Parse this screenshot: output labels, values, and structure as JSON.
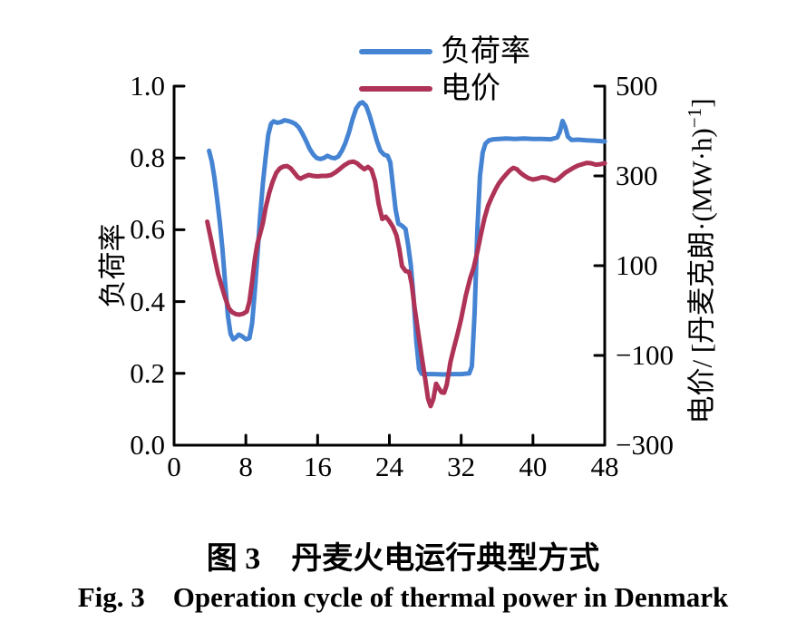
{
  "figure": {
    "caption_zh": "图 3　丹麦火电运行典型方式",
    "caption_en": "Fig. 3　Operation cycle of thermal power in Denmark"
  },
  "legend": {
    "items": [
      {
        "label": "负荷率",
        "color": "#4583d3"
      },
      {
        "label": "电价",
        "color": "#ae3357"
      }
    ]
  },
  "axes": {
    "x": {
      "min": 0,
      "max": 48,
      "ticks": [
        {
          "value": 0,
          "label": "0"
        },
        {
          "value": 8,
          "label": "8"
        },
        {
          "value": 16,
          "label": "16"
        },
        {
          "value": 24,
          "label": "24"
        },
        {
          "value": 32,
          "label": "32"
        },
        {
          "value": 40,
          "label": "40"
        },
        {
          "value": 48,
          "label": "48"
        }
      ]
    },
    "y_left": {
      "min": 0,
      "max": 1,
      "title": "负荷率",
      "ticks": [
        {
          "value": 0.0,
          "label": "0.0"
        },
        {
          "value": 0.2,
          "label": "0.2"
        },
        {
          "value": 0.4,
          "label": "0.4"
        },
        {
          "value": 0.6,
          "label": "0.6"
        },
        {
          "value": 0.8,
          "label": "0.8"
        },
        {
          "value": 1.0,
          "label": "1.0"
        }
      ]
    },
    "y_right": {
      "min": -300,
      "max": 500,
      "title_main": "电价/ [丹麦克朗·(MW·h)",
      "title_sup": "−1",
      "title_close": "]",
      "ticks": [
        {
          "value": 500,
          "label": "500"
        },
        {
          "value": 300,
          "label": "300"
        },
        {
          "value": 100,
          "label": "100"
        },
        {
          "value": -100,
          "label": "−100"
        },
        {
          "value": -300,
          "label": "−300"
        }
      ]
    }
  },
  "chart_data": {
    "type": "line",
    "title": "丹麦火电运行典型方式 (Operation cycle of thermal power in Denmark)",
    "xlabel": "",
    "x_range": [
      0,
      48
    ],
    "left_axis": {
      "label": "负荷率",
      "range": [
        0.0,
        1.0
      ]
    },
    "right_axis": {
      "label": "电价/[丹麦克朗·(MW·h)⁻¹]",
      "range": [
        -300,
        500
      ]
    },
    "grid": false,
    "legend_position": "top-center",
    "series": [
      {
        "name": "负荷率",
        "axis": "left",
        "color": "#4583d3",
        "points": [
          [
            3.9,
            0.82
          ],
          [
            4.2,
            0.79
          ],
          [
            4.5,
            0.745
          ],
          [
            4.8,
            0.685
          ],
          [
            5.1,
            0.62
          ],
          [
            5.4,
            0.545
          ],
          [
            5.7,
            0.45
          ],
          [
            6.0,
            0.36
          ],
          [
            6.3,
            0.31
          ],
          [
            6.6,
            0.295
          ],
          [
            6.9,
            0.3
          ],
          [
            7.2,
            0.308
          ],
          [
            7.6,
            0.303
          ],
          [
            8.0,
            0.295
          ],
          [
            8.4,
            0.298
          ],
          [
            8.7,
            0.34
          ],
          [
            9.0,
            0.43
          ],
          [
            9.3,
            0.53
          ],
          [
            9.6,
            0.64
          ],
          [
            9.9,
            0.73
          ],
          [
            10.2,
            0.8
          ],
          [
            10.5,
            0.865
          ],
          [
            10.8,
            0.895
          ],
          [
            11.1,
            0.902
          ],
          [
            11.5,
            0.898
          ],
          [
            11.9,
            0.9
          ],
          [
            12.3,
            0.905
          ],
          [
            12.7,
            0.903
          ],
          [
            13.1,
            0.9
          ],
          [
            13.5,
            0.895
          ],
          [
            13.9,
            0.885
          ],
          [
            14.3,
            0.868
          ],
          [
            14.7,
            0.848
          ],
          [
            15.1,
            0.826
          ],
          [
            15.5,
            0.81
          ],
          [
            15.9,
            0.8
          ],
          [
            16.3,
            0.797
          ],
          [
            16.7,
            0.8
          ],
          [
            17.1,
            0.806
          ],
          [
            17.5,
            0.801
          ],
          [
            17.9,
            0.799
          ],
          [
            18.3,
            0.804
          ],
          [
            18.7,
            0.82
          ],
          [
            19.1,
            0.842
          ],
          [
            19.5,
            0.872
          ],
          [
            19.9,
            0.908
          ],
          [
            20.3,
            0.938
          ],
          [
            20.7,
            0.952
          ],
          [
            21.0,
            0.955
          ],
          [
            21.4,
            0.945
          ],
          [
            21.8,
            0.918
          ],
          [
            22.2,
            0.883
          ],
          [
            22.6,
            0.848
          ],
          [
            23.0,
            0.82
          ],
          [
            23.4,
            0.809
          ],
          [
            23.8,
            0.806
          ],
          [
            24.1,
            0.788
          ],
          [
            24.4,
            0.72
          ],
          [
            24.7,
            0.655
          ],
          [
            25.0,
            0.617
          ],
          [
            25.4,
            0.611
          ],
          [
            25.8,
            0.602
          ],
          [
            26.1,
            0.555
          ],
          [
            26.4,
            0.5
          ],
          [
            26.7,
            0.41
          ],
          [
            27.0,
            0.29
          ],
          [
            27.3,
            0.213
          ],
          [
            27.6,
            0.199
          ],
          [
            28.2,
            0.198
          ],
          [
            29.0,
            0.198
          ],
          [
            30.0,
            0.197
          ],
          [
            31.0,
            0.198
          ],
          [
            32.0,
            0.198
          ],
          [
            32.9,
            0.2
          ],
          [
            33.2,
            0.22
          ],
          [
            33.5,
            0.37
          ],
          [
            33.8,
            0.6
          ],
          [
            34.1,
            0.75
          ],
          [
            34.4,
            0.815
          ],
          [
            34.7,
            0.84
          ],
          [
            35.1,
            0.849
          ],
          [
            35.6,
            0.852
          ],
          [
            36.2,
            0.853
          ],
          [
            37.0,
            0.854
          ],
          [
            38.0,
            0.853
          ],
          [
            39.0,
            0.854
          ],
          [
            40.0,
            0.853
          ],
          [
            41.0,
            0.853
          ],
          [
            42.0,
            0.852
          ],
          [
            42.7,
            0.857
          ],
          [
            43.0,
            0.873
          ],
          [
            43.3,
            0.903
          ],
          [
            43.6,
            0.886
          ],
          [
            43.9,
            0.859
          ],
          [
            44.3,
            0.85
          ],
          [
            45.0,
            0.851
          ],
          [
            46.0,
            0.849
          ],
          [
            47.0,
            0.848
          ],
          [
            48.0,
            0.846
          ]
        ]
      },
      {
        "name": "电价",
        "axis": "right",
        "color": "#ae3357",
        "points": [
          [
            3.7,
            198
          ],
          [
            4.1,
            160
          ],
          [
            4.5,
            120
          ],
          [
            4.9,
            82
          ],
          [
            5.3,
            55
          ],
          [
            5.7,
            28
          ],
          [
            6.1,
            5
          ],
          [
            6.5,
            -4
          ],
          [
            6.9,
            -8
          ],
          [
            7.3,
            -9
          ],
          [
            7.7,
            -7
          ],
          [
            8.1,
            -2
          ],
          [
            8.4,
            20
          ],
          [
            8.7,
            65
          ],
          [
            9.0,
            115
          ],
          [
            9.3,
            150
          ],
          [
            9.6,
            172
          ],
          [
            9.9,
            195
          ],
          [
            10.2,
            228
          ],
          [
            10.6,
            262
          ],
          [
            11.0,
            288
          ],
          [
            11.4,
            307
          ],
          [
            11.8,
            317
          ],
          [
            12.2,
            321
          ],
          [
            12.6,
            322
          ],
          [
            13.0,
            317
          ],
          [
            13.4,
            307
          ],
          [
            13.8,
            297
          ],
          [
            14.1,
            294
          ],
          [
            14.5,
            298
          ],
          [
            15.0,
            302
          ],
          [
            15.5,
            300
          ],
          [
            16.0,
            299
          ],
          [
            16.5,
            300
          ],
          [
            17.0,
            300
          ],
          [
            17.5,
            302
          ],
          [
            18.0,
            308
          ],
          [
            18.5,
            316
          ],
          [
            19.0,
            324
          ],
          [
            19.5,
            330
          ],
          [
            20.0,
            332
          ],
          [
            20.4,
            328
          ],
          [
            20.8,
            321
          ],
          [
            21.2,
            315
          ],
          [
            21.6,
            320
          ],
          [
            22.0,
            314
          ],
          [
            22.4,
            288
          ],
          [
            22.8,
            238
          ],
          [
            23.2,
            204
          ],
          [
            23.6,
            209
          ],
          [
            24.0,
            199
          ],
          [
            24.4,
            186
          ],
          [
            24.8,
            167
          ],
          [
            25.1,
            138
          ],
          [
            25.4,
            99
          ],
          [
            25.8,
            88
          ],
          [
            26.2,
            86
          ],
          [
            26.5,
            58
          ],
          [
            26.8,
            8
          ],
          [
            27.2,
            -48
          ],
          [
            27.6,
            -102
          ],
          [
            28.0,
            -154
          ],
          [
            28.3,
            -196
          ],
          [
            28.6,
            -213
          ],
          [
            28.9,
            -197
          ],
          [
            29.2,
            -163
          ],
          [
            29.5,
            -173
          ],
          [
            29.8,
            -182
          ],
          [
            30.1,
            -183
          ],
          [
            30.4,
            -165
          ],
          [
            30.8,
            -115
          ],
          [
            31.2,
            -82
          ],
          [
            31.6,
            -52
          ],
          [
            32.0,
            -18
          ],
          [
            32.5,
            32
          ],
          [
            33.0,
            72
          ],
          [
            33.4,
            96
          ],
          [
            33.8,
            131
          ],
          [
            34.2,
            169
          ],
          [
            34.6,
            206
          ],
          [
            35.0,
            234
          ],
          [
            35.4,
            252
          ],
          [
            35.8,
            269
          ],
          [
            36.2,
            283
          ],
          [
            36.6,
            294
          ],
          [
            37.0,
            303
          ],
          [
            37.4,
            312
          ],
          [
            37.8,
            318
          ],
          [
            38.2,
            315
          ],
          [
            38.6,
            307
          ],
          [
            39.0,
            301
          ],
          [
            39.5,
            295
          ],
          [
            40.0,
            292
          ],
          [
            40.5,
            294
          ],
          [
            41.0,
            297
          ],
          [
            41.5,
            296
          ],
          [
            42.0,
            292
          ],
          [
            42.4,
            289
          ],
          [
            42.8,
            293
          ],
          [
            43.2,
            300
          ],
          [
            43.6,
            307
          ],
          [
            44.0,
            312
          ],
          [
            44.5,
            318
          ],
          [
            45.0,
            323
          ],
          [
            45.5,
            326
          ],
          [
            46.0,
            329
          ],
          [
            46.5,
            328
          ],
          [
            47.0,
            325
          ],
          [
            47.5,
            326
          ],
          [
            48.0,
            328
          ]
        ]
      }
    ]
  }
}
